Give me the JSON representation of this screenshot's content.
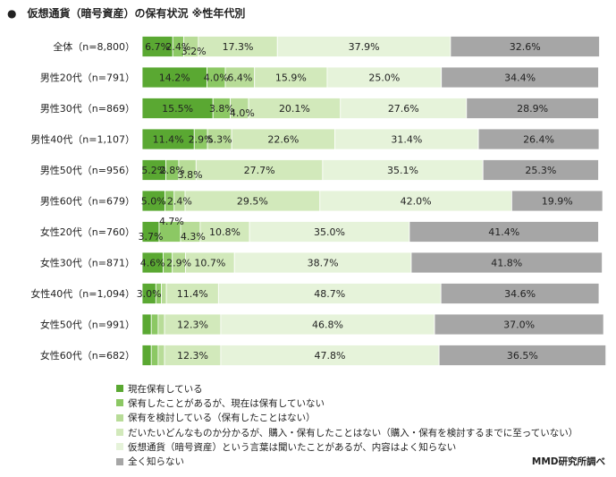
{
  "title": "●　仮想通貨（暗号資産）の保有状況 ※性年代別",
  "source": "MMD研究所調べ",
  "chart_data": {
    "type": "bar",
    "orientation": "horizontal",
    "stacked": true,
    "xlim": [
      0,
      100
    ],
    "categories": [
      "全体（n=8,800）",
      "男性20代（n=791）",
      "男性30代（n=869）",
      "男性40代（n=1,107）",
      "男性50代（n=956）",
      "男性60代（n=679）",
      "女性20代（n=760）",
      "女性30代（n=871）",
      "女性40代（n=1,094）",
      "女性50代（n=991）",
      "女性60代（n=682）"
    ],
    "series": [
      {
        "name": "現在保有している",
        "color": "#5aa832",
        "values": [
          6.7,
          14.2,
          15.5,
          11.4,
          5.2,
          5.0,
          3.7,
          4.6,
          3.0,
          2.0,
          2.0
        ],
        "labels": [
          "6.7%",
          "14.2%",
          "15.5%",
          "11.4%",
          "5.2%",
          "5.0%",
          "3.7%",
          "4.6%",
          "3.0%",
          "",
          ""
        ]
      },
      {
        "name": "保有したことがあるが、現在は保有していない",
        "color": "#8cc864",
        "values": [
          2.4,
          4.0,
          3.8,
          2.9,
          2.8,
          2.0,
          4.7,
          2.0,
          1.2,
          1.5,
          1.5
        ],
        "labels": [
          "2.4%",
          "4.0%",
          "3.8%",
          "2.9%",
          "2.8%",
          "",
          "4.7%",
          "",
          "",
          "",
          ""
        ]
      },
      {
        "name": "保有を検討している（保有したことはない）",
        "color": "#b8dc98",
        "values": [
          3.2,
          6.4,
          4.0,
          5.3,
          3.8,
          2.4,
          4.3,
          2.9,
          1.1,
          1.4,
          1.4
        ],
        "labels": [
          "3.2%",
          "6.4%",
          "4.0%",
          "5.3%",
          "3.8%",
          "2.4%",
          "4.3%",
          "2.9%",
          "",
          "",
          ""
        ]
      },
      {
        "name": "だいたいどんなものか分かるが、購入・保有したことはない（購入・保有を検討するまでに至っていない）",
        "color": "#d2e9bb",
        "values": [
          17.3,
          15.9,
          20.1,
          22.6,
          27.7,
          29.5,
          10.8,
          10.7,
          11.4,
          12.3,
          12.3
        ],
        "labels": [
          "17.3%",
          "15.9%",
          "20.1%",
          "22.6%",
          "27.7%",
          "29.5%",
          "10.8%",
          "10.7%",
          "11.4%",
          "12.3%",
          "12.3%"
        ]
      },
      {
        "name": "仮想通貨（暗号資産）という言葉は聞いたことがあるが、内容はよく知らない",
        "color": "#e6f3da",
        "values": [
          37.9,
          25.0,
          27.6,
          31.4,
          35.1,
          42.0,
          35.0,
          38.7,
          48.7,
          46.8,
          47.8
        ],
        "labels": [
          "37.9%",
          "25.0%",
          "27.6%",
          "31.4%",
          "35.1%",
          "42.0%",
          "35.0%",
          "38.7%",
          "48.7%",
          "46.8%",
          "47.8%"
        ]
      },
      {
        "name": "全く知らない",
        "color": "#a6a6a6",
        "values": [
          32.6,
          34.4,
          28.9,
          26.4,
          25.3,
          19.9,
          41.4,
          41.8,
          34.6,
          37.0,
          36.5
        ],
        "labels": [
          "32.6%",
          "34.4%",
          "28.9%",
          "26.4%",
          "25.3%",
          "19.9%",
          "41.4%",
          "41.8%",
          "34.6%",
          "37.0%",
          "36.5%"
        ]
      }
    ],
    "legend_position": "bottom"
  }
}
